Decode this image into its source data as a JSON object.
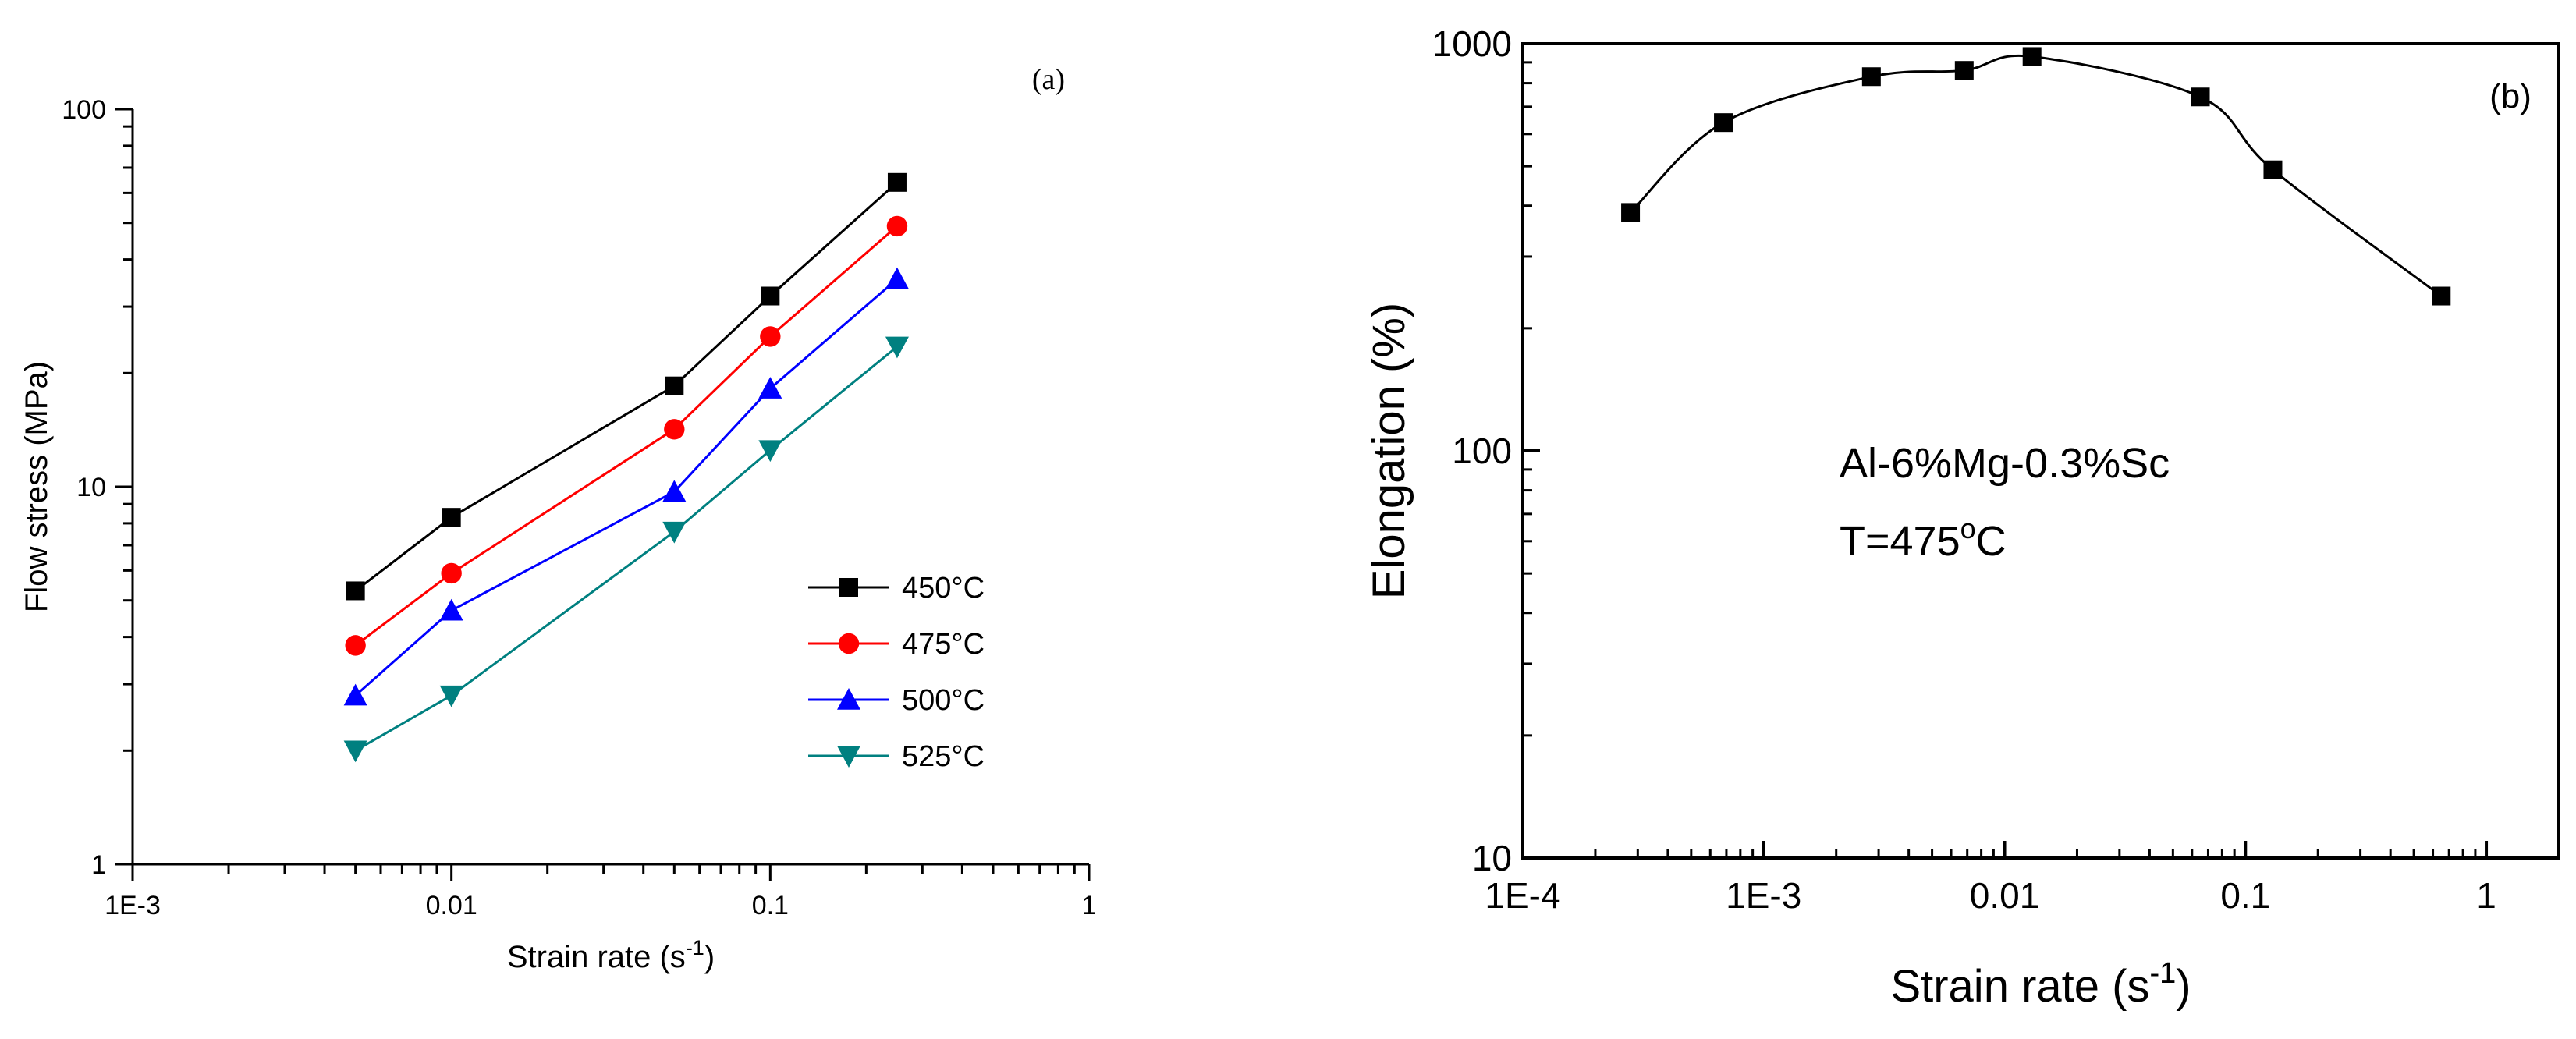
{
  "chart_data": [
    {
      "type": "line",
      "panel_label": "(a)",
      "xlabel": "Strain rate (s",
      "xlabel_sup": "-1",
      "xlabel_end": ")",
      "ylabel": "Flow stress (MPa)",
      "xscale": "log",
      "yscale": "log",
      "xlim": [
        0.001,
        1
      ],
      "ylim": [
        1,
        100
      ],
      "xticks": [
        {
          "value": 0.001,
          "label": "1E-3"
        },
        {
          "value": 0.01,
          "label": "0.01"
        },
        {
          "value": 0.1,
          "label": "0.1"
        },
        {
          "value": 1,
          "label": "1"
        }
      ],
      "yticks": [
        {
          "value": 1,
          "label": "1"
        },
        {
          "value": 10,
          "label": "10"
        },
        {
          "value": 100,
          "label": "100"
        }
      ],
      "legend_position": "center-right",
      "x": [
        0.005,
        0.01,
        0.05,
        0.1,
        0.25
      ],
      "series": [
        {
          "name": "450",
          "unit": "°C",
          "marker": "square",
          "color": "#000000",
          "values": [
            5.3,
            8.3,
            18.5,
            32,
            64
          ]
        },
        {
          "name": "475",
          "unit": "°C",
          "marker": "circle",
          "color": "#ff0000",
          "values": [
            3.8,
            5.9,
            14.2,
            25,
            49
          ]
        },
        {
          "name": "500",
          "unit": "°C",
          "marker": "triangle-up",
          "color": "#0000ff",
          "values": [
            2.8,
            4.7,
            9.7,
            18.2,
            35.5
          ]
        },
        {
          "name": "525",
          "unit": "°C",
          "marker": "triangle-down",
          "color": "#008080",
          "values": [
            2.0,
            2.8,
            7.6,
            12.5,
            23.5
          ]
        }
      ]
    },
    {
      "type": "line",
      "panel_label": "(b)",
      "xlabel": "Strain rate (s",
      "xlabel_sup": "-1",
      "xlabel_end": ")",
      "ylabel": "Elongation (%)",
      "xscale": "log",
      "yscale": "log",
      "xlim": [
        0.0001,
        2
      ],
      "ylim": [
        10,
        1000
      ],
      "xticks": [
        {
          "value": 0.0001,
          "label": "1E-4"
        },
        {
          "value": 0.001,
          "label": "1E-3"
        },
        {
          "value": 0.01,
          "label": "0.01"
        },
        {
          "value": 0.1,
          "label": "0.1"
        },
        {
          "value": 1,
          "label": "1"
        }
      ],
      "yticks": [
        {
          "value": 10,
          "label": "10"
        },
        {
          "value": 100,
          "label": "100"
        },
        {
          "value": 1000,
          "label": "1000"
        }
      ],
      "annotation_line1": "Al-6%Mg-0.3%Sc",
      "annotation_line2_prefix": "T=475",
      "annotation_line2_sup": "o",
      "annotation_line2_end": "C",
      "series": [
        {
          "name": "Al-6%Mg-0.3%Sc",
          "marker": "square",
          "color": "#000000",
          "x": [
            0.00028,
            0.00068,
            0.0028,
            0.0068,
            0.013,
            0.065,
            0.13,
            0.65
          ],
          "values": [
            385,
            640,
            830,
            860,
            930,
            740,
            490,
            240
          ]
        }
      ]
    }
  ]
}
